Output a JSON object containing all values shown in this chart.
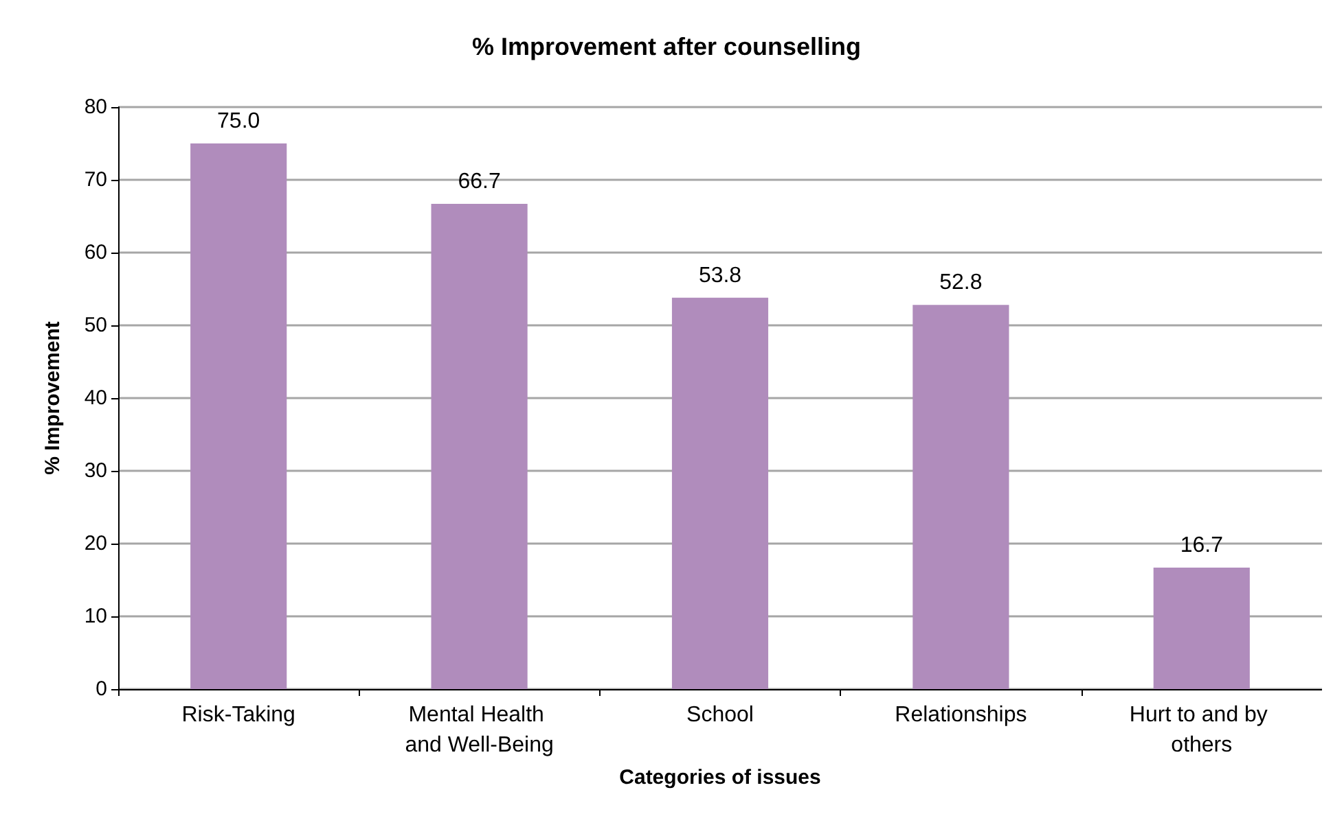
{
  "chart_data": {
    "type": "bar",
    "title": "% Improvement after counselling",
    "xlabel": "Categories of issues",
    "ylabel": "% Improvement",
    "categories": [
      "Risk-Taking",
      "Mental Health and Well-Being",
      "School",
      "Relationships",
      "Hurt to and by others"
    ],
    "values": [
      75.0,
      66.7,
      53.8,
      52.8,
      16.7
    ],
    "value_labels": [
      "75.0",
      "66.7",
      "53.8",
      "52.8",
      "16.7"
    ],
    "color": "#b08cbc",
    "ylim": [
      0,
      80
    ],
    "yticks": [
      0,
      10,
      20,
      30,
      40,
      50,
      60,
      70,
      80
    ],
    "grid": "y"
  }
}
